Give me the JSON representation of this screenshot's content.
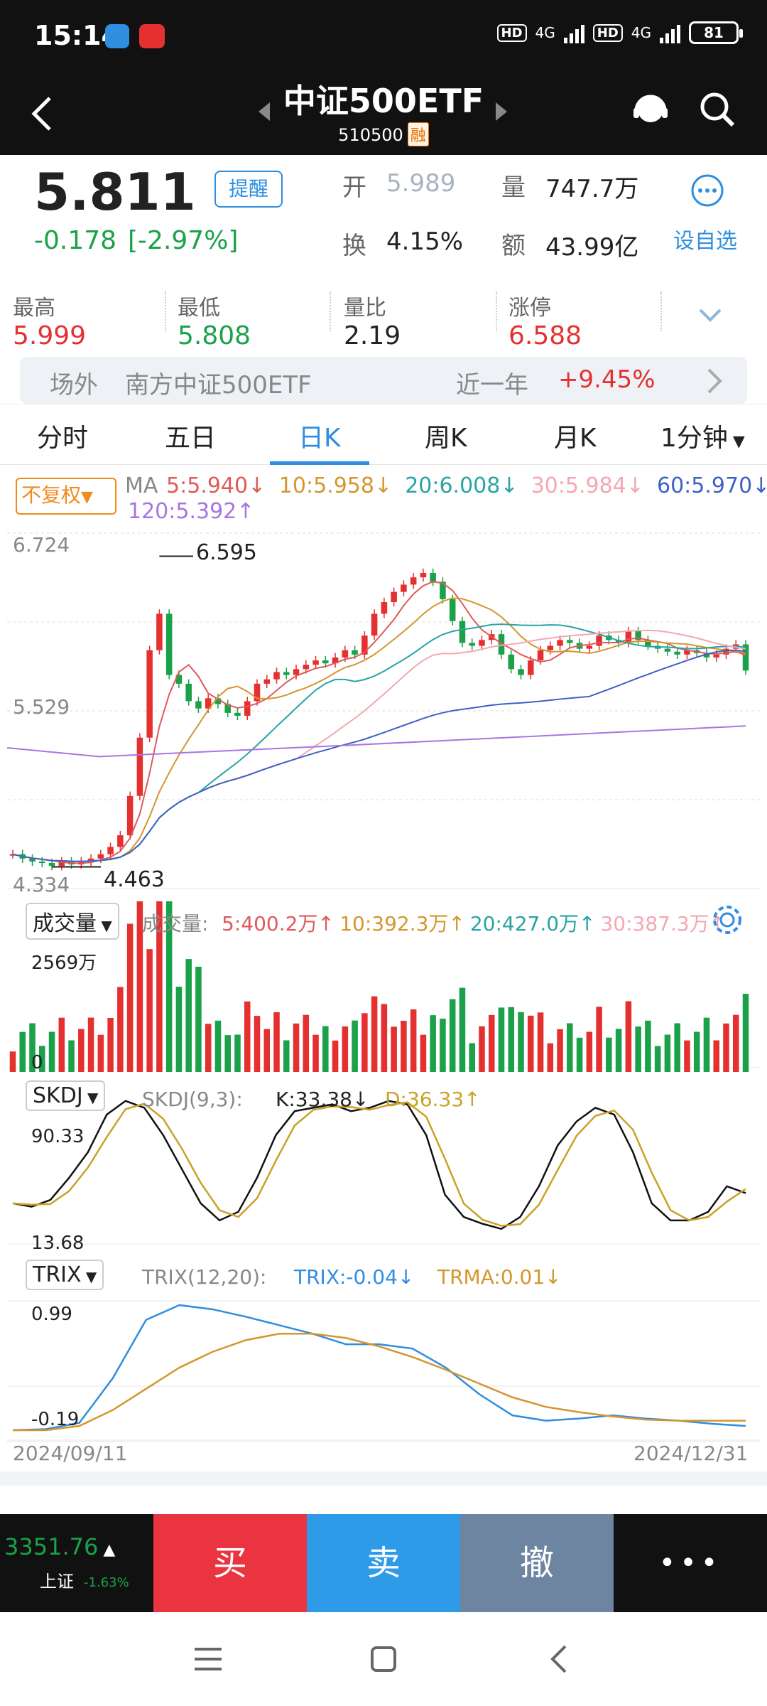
{
  "status": {
    "time": "15:14",
    "hd1": "HD",
    "net1": "4G",
    "hd2": "HD",
    "net2": "4G",
    "battery": "81"
  },
  "nav": {
    "title": "中证500ETF",
    "code": "510500",
    "badge": "融"
  },
  "quote": {
    "price": "5.811",
    "change": "-0.178",
    "change_pct": "[-2.97%]",
    "remind_label": "提醒",
    "open_label": "开",
    "open_value": "5.989",
    "volume_label": "量",
    "volume_value": "747.7万",
    "turnover_label": "换",
    "turnover_value": "4.15%",
    "amount_label": "额",
    "amount_value": "43.99亿",
    "watchlist_label": "设自选"
  },
  "stats": [
    {
      "label": "最高",
      "value": "5.999",
      "color": "#e53030"
    },
    {
      "label": "最低",
      "value": "5.808",
      "color": "#1aa14a"
    },
    {
      "label": "量比",
      "value": "2.19",
      "color": "#222222"
    },
    {
      "label": "涨停",
      "value": "6.588",
      "color": "#e53030"
    }
  ],
  "offsite": {
    "label": "场外",
    "fund": "南方中证500ETF",
    "period": "近一年",
    "return": "+9.45%"
  },
  "tabs": [
    "分时",
    "五日",
    "日K",
    "周K",
    "月K",
    "1分钟"
  ],
  "active_tab": "日K",
  "kline": {
    "adjust_label": "不复权",
    "ma_title": "MA",
    "ma": [
      {
        "text": "5:5.940",
        "arrow": "↓",
        "color": "#e05a5a"
      },
      {
        "text": "10:5.958",
        "arrow": "↓",
        "color": "#d4962e"
      },
      {
        "text": "20:6.008",
        "arrow": "↓",
        "color": "#2aa3a3"
      },
      {
        "text": "30:5.984",
        "arrow": "↓",
        "color": "#f4a7b0"
      },
      {
        "text": "60:5.970",
        "arrow": "↓",
        "color": "#3d62c4"
      },
      {
        "text": "120:5.392",
        "arrow": "↑",
        "color": "#a875e0"
      }
    ],
    "y_top": "6.724",
    "y_mid": "5.529",
    "y_bottom": "4.334",
    "max_label": "6.595",
    "min_label": "4.463"
  },
  "volume": {
    "selector": "成交量",
    "title": "成交量:",
    "ma": [
      {
        "text": "5:400.2万",
        "arrow": "↑",
        "color": "#e05a5a"
      },
      {
        "text": "10:392.3万",
        "arrow": "↑",
        "color": "#d4962e"
      },
      {
        "text": "20:427.0万",
        "arrow": "↑",
        "color": "#2aa3a3"
      },
      {
        "text": "30:387.3万",
        "arrow": "↑",
        "color": "#f4a7b0"
      }
    ],
    "y_top": "2569万",
    "y_zero": "0"
  },
  "skdj": {
    "selector": "SKDJ",
    "title": "SKDJ(9,3):",
    "k": "K:33.38",
    "k_arrow": "↓",
    "d": "D:36.33",
    "d_arrow": "↑",
    "y_top": "90.33",
    "y_bottom": "13.68"
  },
  "trix": {
    "selector": "TRIX",
    "title": "TRIX(12,20):",
    "trix": "TRIX:-0.04",
    "trix_arrow": "↓",
    "trma": "TRMA:0.01",
    "trma_arrow": "↓",
    "y_top": "0.99",
    "y_bottom": "-0.19"
  },
  "dates": {
    "start": "2024/09/11",
    "end": "2024/12/31"
  },
  "index": {
    "value": "3351.76",
    "name": "上证",
    "pct": "-1.63%"
  },
  "trade": {
    "buy": "买",
    "sell": "卖",
    "cancel": "撤",
    "more": "•••"
  },
  "colors": {
    "up": "#e53030",
    "down": "#1aa14a",
    "accent": "#2f8ee0",
    "buy": "#ea3440",
    "sell": "#2e9be8",
    "cancel": "#6d85a0"
  }
}
